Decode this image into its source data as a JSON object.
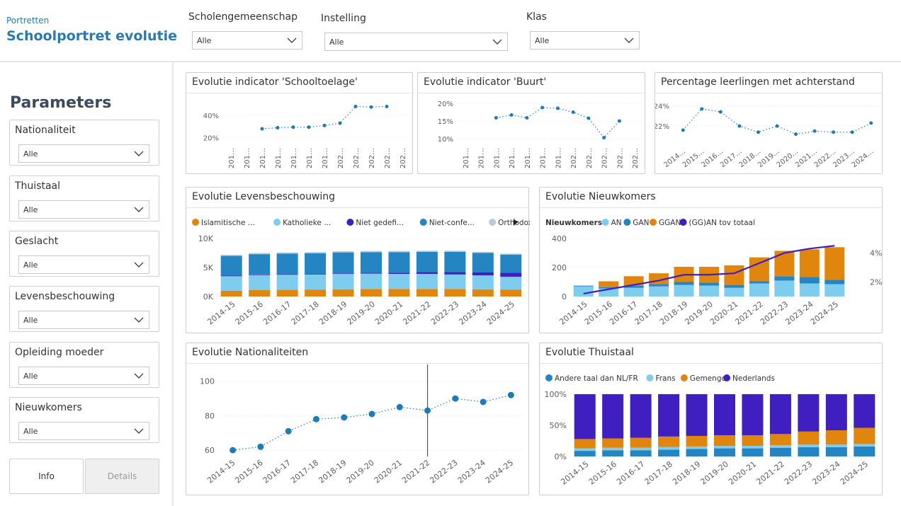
{
  "header": {
    "breadcrumb": "Portretten",
    "title": "Schoolportret evolutie",
    "filters": [
      {
        "label": "Scholengemeenschap",
        "value": "Alle"
      },
      {
        "label": "Instelling",
        "value": "Alle"
      },
      {
        "label": "Klas",
        "value": "Alle"
      }
    ]
  },
  "sidebar": {
    "title": "Parameters",
    "params": [
      {
        "label": "Nationaliteit",
        "value": "Alle"
      },
      {
        "label": "Thuistaal",
        "value": "Alle"
      },
      {
        "label": "Geslacht",
        "value": "Alle"
      },
      {
        "label": "Levensbeschouwing",
        "value": "Alle"
      },
      {
        "label": "Opleiding moeder",
        "value": "Alle"
      },
      {
        "label": "Nieuwkomers",
        "value": "Alle"
      }
    ],
    "buttons": {
      "info": "Info",
      "details": "Details"
    }
  },
  "colors": {
    "accent": "#2a7ab0",
    "dot": "#1f7bb6",
    "orange": "#e0860f",
    "lightblue": "#7fcdee",
    "purple": "#3f1fbf",
    "blue": "#2585c2",
    "grey": "#b9c9d6"
  },
  "chart_data": [
    {
      "id": "schooltoelage",
      "type": "scatter",
      "title": "Evolutie indicator 'Schooltoelage'",
      "categories": [
        "201…",
        "201…",
        "201…",
        "201…",
        "201…",
        "201…",
        "201…",
        "202…",
        "202…",
        "202…",
        "202…",
        "202…"
      ],
      "values": [
        null,
        null,
        28,
        29,
        29.5,
        29.5,
        31,
        33,
        48,
        47.5,
        48,
        null
      ],
      "ytick_labels": [
        "20%",
        "40%"
      ],
      "yticks": [
        20,
        40
      ],
      "ylim": [
        16,
        54
      ]
    },
    {
      "id": "buurt",
      "type": "scatter",
      "title": "Evolutie indicator 'Buurt'",
      "categories": [
        "201…",
        "201…",
        "201…",
        "201…",
        "201…",
        "201…",
        "201…",
        "202…",
        "202…",
        "202…",
        "202…",
        "202…"
      ],
      "values": [
        null,
        null,
        15.9,
        16.7,
        15.9,
        18.8,
        18.6,
        17.5,
        15.8,
        10.3,
        15.0,
        null
      ],
      "ytick_labels": [
        "10%",
        "15%",
        "20%"
      ],
      "yticks": [
        10,
        15,
        20
      ],
      "ylim": [
        9,
        21
      ]
    },
    {
      "id": "achterstand",
      "type": "scatter",
      "title": "Percentage leerlingen met achterstand",
      "categories": [
        "2014…",
        "2015…",
        "2016…",
        "2017…",
        "2018…",
        "2019…",
        "2020…",
        "2021…",
        "2022…",
        "2023…",
        "2024…"
      ],
      "values": [
        21.6,
        23.7,
        23.4,
        22.0,
        21.4,
        22.0,
        21.2,
        21.5,
        21.4,
        21.4,
        22.3
      ],
      "ytick_labels": [
        "22%",
        "24%"
      ],
      "yticks": [
        22,
        24
      ],
      "ylim": [
        20.4,
        24.6
      ]
    },
    {
      "id": "levensbeschouwing",
      "type": "bar",
      "title": "Evolutie Levensbeschouwing",
      "legend": [
        "Islamitische ...",
        "Katholieke ...",
        "Niet gedefi...",
        "Niet-confe...",
        "Orthodoxe ..."
      ],
      "categories": [
        "2014-15",
        "2015-16",
        "2016-17",
        "2017-18",
        "2018-19",
        "2019-20",
        "2020-21",
        "2021-22",
        "2022-23",
        "2023-24",
        "2024-25"
      ],
      "series": [
        {
          "name": "Islamitische ...",
          "color": "#e0860f",
          "values": [
            1000,
            1100,
            1150,
            1200,
            1250,
            1300,
            1300,
            1300,
            1300,
            1250,
            1200
          ]
        },
        {
          "name": "Katholieke ...",
          "color": "#7fcdee",
          "values": [
            2500,
            2600,
            2600,
            2600,
            2650,
            2650,
            2600,
            2600,
            2500,
            2400,
            2200
          ]
        },
        {
          "name": "Niet gedefi...",
          "color": "#3f1fbf",
          "values": [
            100,
            100,
            100,
            100,
            100,
            150,
            200,
            300,
            400,
            500,
            700
          ]
        },
        {
          "name": "Niet-confe...",
          "color": "#2585c2",
          "values": [
            3400,
            3500,
            3550,
            3550,
            3600,
            3550,
            3550,
            3500,
            3500,
            3350,
            3100
          ]
        },
        {
          "name": "Orthodoxe ...",
          "color": "#b9c9d6",
          "values": [
            200,
            200,
            200,
            200,
            200,
            200,
            200,
            200,
            200,
            200,
            200
          ]
        }
      ],
      "ytick_labels": [
        "0K",
        "5K",
        "10K"
      ],
      "yticks": [
        0,
        5000,
        10000
      ],
      "ylim": [
        0,
        10000
      ]
    },
    {
      "id": "nieuwkomers",
      "type": "bar",
      "title": "Evolutie Nieuwkomers",
      "legend_title": "Nieuwkomers",
      "legend": [
        "AN",
        "GAN",
        "GGAN",
        "(GG)AN tov totaal"
      ],
      "categories": [
        "2014-15",
        "2015-16",
        "2016-17",
        "2017-18",
        "2018-19",
        "2019-20",
        "2020-21",
        "2021-22",
        "2022-23",
        "2023-24",
        "2024-25"
      ],
      "series": [
        {
          "name": "AN",
          "color": "#7fcdee",
          "values": [
            70,
            55,
            60,
            70,
            80,
            75,
            60,
            90,
            110,
            90,
            85
          ]
        },
        {
          "name": "GAN",
          "color": "#2585c2",
          "values": [
            5,
            10,
            15,
            15,
            20,
            20,
            20,
            15,
            30,
            45,
            30
          ]
        },
        {
          "name": "GGAN",
          "color": "#e0860f",
          "values": [
            0,
            40,
            65,
            75,
            105,
            110,
            135,
            165,
            175,
            190,
            225
          ]
        }
      ],
      "line": {
        "name": "(GG)AN tov totaal",
        "color": "#3f1fbf",
        "values": [
          1.2,
          1.5,
          1.8,
          2.1,
          2.5,
          2.5,
          2.6,
          3.3,
          4.0,
          4.3,
          4.5
        ]
      },
      "ytick_labels": [
        "0",
        "200",
        "400"
      ],
      "yticks": [
        0,
        200,
        400
      ],
      "ylim": [
        0,
        400
      ],
      "y2tick_labels": [
        "2%",
        "4%"
      ],
      "y2ticks": [
        2,
        4
      ],
      "y2lim": [
        1,
        5
      ]
    },
    {
      "id": "nationaliteiten",
      "type": "scatter",
      "title": "Evolutie Nationaliteiten",
      "categories": [
        "2014-15",
        "2015-16",
        "2016-17",
        "2017-18",
        "2018-19",
        "2019-20",
        "2020-21",
        "2021-22",
        "2022-23",
        "2023-24",
        "2024-25"
      ],
      "values": [
        60,
        62,
        71,
        78,
        79,
        81,
        85,
        83,
        90,
        88,
        92
      ],
      "ytick_labels": [
        "60",
        "80",
        "100"
      ],
      "yticks": [
        60,
        80,
        100
      ],
      "ylim": [
        58,
        104
      ],
      "marker_category": "2021-22"
    },
    {
      "id": "thuistaal",
      "type": "bar",
      "title": "Evolutie Thuistaal",
      "legend": [
        "Andere taal dan NL/FR",
        "Frans",
        "Gemengd",
        "Nederlands"
      ],
      "categories": [
        "2014-15",
        "2015-16",
        "2016-17",
        "2017-18",
        "2018-19",
        "2019-20",
        "2020-21",
        "2021-22",
        "2022-23",
        "2023-24",
        "2024-25"
      ],
      "series": [
        {
          "name": "Andere taal dan NL/FR",
          "color": "#2585c2",
          "values": [
            9,
            10,
            10,
            11,
            12,
            13,
            13,
            14,
            15,
            15,
            16
          ]
        },
        {
          "name": "Frans",
          "color": "#7fcdee",
          "values": [
            4,
            4,
            4,
            4,
            4,
            4,
            4,
            4,
            4,
            4,
            4
          ]
        },
        {
          "name": "Gemengd",
          "color": "#e0860f",
          "values": [
            15,
            15,
            16,
            17,
            17,
            17,
            17,
            18,
            21,
            23,
            26
          ]
        },
        {
          "name": "Nederlands",
          "color": "#3f1fbf",
          "values": [
            72,
            71,
            70,
            68,
            67,
            66,
            66,
            64,
            60,
            58,
            54
          ]
        }
      ],
      "ytick_labels": [
        "0%",
        "50%",
        "100%"
      ],
      "yticks": [
        0,
        50,
        100
      ],
      "ylim": [
        0,
        100
      ]
    }
  ]
}
